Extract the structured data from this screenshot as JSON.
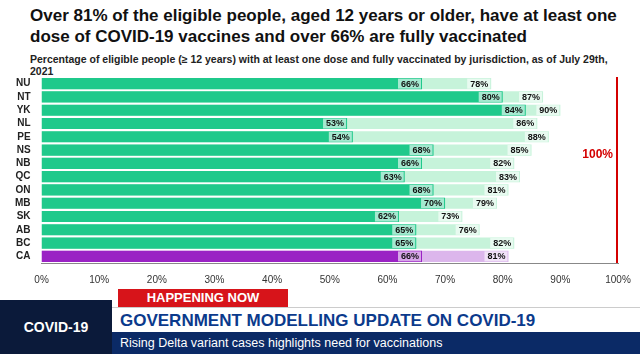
{
  "chart_data": {
    "type": "bar",
    "orientation": "horizontal",
    "title": "Over 81% of the eligible people, aged 12 years or older, have at least one dose of COVID-19 vaccines and over 66% are fully vaccinated",
    "subtitle": "Percentage of eligible people (≥ 12 years) with at least one dose and fully vaccinated by jurisdiction, as of July 29th, 2021",
    "categories": [
      "NU",
      "NT",
      "YK",
      "NL",
      "PE",
      "NS",
      "NB",
      "QC",
      "ON",
      "MB",
      "SK",
      "AB",
      "BC",
      "CA"
    ],
    "series": [
      {
        "colors": [
          "#1fc98b",
          "#1fc98b",
          "#1fc98b",
          "#1fc98b",
          "#1fc98b",
          "#1fc98b",
          "#1fc98b",
          "#1fc98b",
          "#1fc98b",
          "#1fc98b",
          "#1fc98b",
          "#1fc98b",
          "#1fc98b",
          "#9a22c4"
        ],
        "values": [
          66,
          80,
          84,
          53,
          54,
          68,
          66,
          63,
          68,
          70,
          62,
          65,
          65,
          66
        ],
        "value_labels": [
          "66%",
          "80%",
          "84%",
          "53%",
          "54%",
          "68%",
          "66%",
          "63%",
          "68%",
          "70%",
          "62%",
          "65%",
          "65%",
          "66%"
        ]
      },
      {
        "colors": [
          "#c6f3da",
          "#c6f3da",
          "#c6f3da",
          "#c6f3da",
          "#c6f3da",
          "#c6f3da",
          "#c6f3da",
          "#c6f3da",
          "#c6f3da",
          "#c6f3da",
          "#c6f3da",
          "#c6f3da",
          "#c6f3da",
          "#dcb6ec"
        ],
        "values": [
          78,
          87,
          90,
          86,
          88,
          85,
          82,
          83,
          81,
          79,
          73,
          76,
          82,
          81
        ],
        "value_labels": [
          "78%",
          "87%",
          "90%",
          "86%",
          "88%",
          "85%",
          "82%",
          "83%",
          "81%",
          "79%",
          "73%",
          "76%",
          "82%",
          "81%"
        ]
      }
    ],
    "xlim": [
      0,
      100
    ],
    "xticks": [
      {
        "value": 0,
        "label": "0%"
      },
      {
        "value": 10,
        "label": "10%"
      },
      {
        "value": 20,
        "label": "20%"
      },
      {
        "value": 30,
        "label": "30%"
      },
      {
        "value": 40,
        "label": "40%"
      },
      {
        "value": 50,
        "label": "50%"
      },
      {
        "value": 60,
        "label": "60%"
      },
      {
        "value": 70,
        "label": "70%"
      },
      {
        "value": 80,
        "label": "80%"
      },
      {
        "value": 90,
        "label": "90%"
      },
      {
        "value": 100,
        "label": "100%"
      }
    ],
    "grid": false,
    "stacked": false,
    "data_labels": true,
    "annotations": [
      {
        "text": "100%",
        "x": 100,
        "color": "#d40000"
      }
    ]
  },
  "banner": {
    "logo": "COVID-19",
    "tag": "HAPPENING NOW",
    "headline": "GOVERNMENT MODELLING UPDATE ON COVID-19",
    "subline": "Rising Delta variant cases highlights need for vaccinations"
  }
}
